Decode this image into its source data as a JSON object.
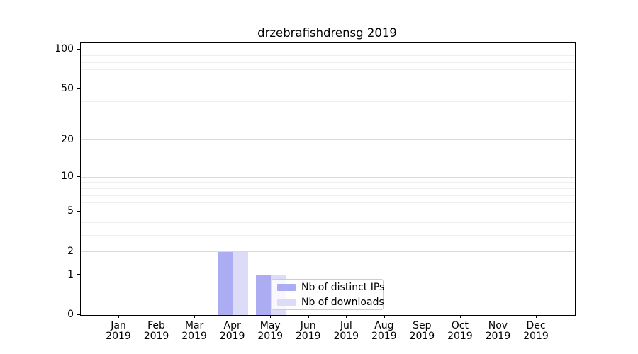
{
  "figure_title": "drzebrafishdrensg 2019",
  "chart_data": {
    "type": "bar",
    "title": "drzebrafishdrensg 2019",
    "xlabel": "",
    "ylabel": "",
    "categories": [
      "Jan 2019",
      "Feb 2019",
      "Mar 2019",
      "Apr 2019",
      "May 2019",
      "Jun 2019",
      "Jul 2019",
      "Aug 2019",
      "Sep 2019",
      "Oct 2019",
      "Nov 2019",
      "Dec 2019"
    ],
    "x_tick_line1": [
      "Jan",
      "Feb",
      "Mar",
      "Apr",
      "May",
      "Jun",
      "Jul",
      "Aug",
      "Sep",
      "Oct",
      "Nov",
      "Dec"
    ],
    "x_tick_line2": [
      "2019",
      "2019",
      "2019",
      "2019",
      "2019",
      "2019",
      "2019",
      "2019",
      "2019",
      "2019",
      "2019",
      "2019"
    ],
    "series": [
      {
        "name": "Nb of distinct IPs",
        "color": "#acacf2",
        "values": [
          0,
          0,
          0,
          2,
          1,
          0,
          0,
          0,
          0,
          0,
          0,
          0
        ]
      },
      {
        "name": "Nb of downloads",
        "color": "#dcdcf8",
        "values": [
          0,
          0,
          0,
          2,
          1,
          0,
          0,
          0,
          0,
          0,
          0,
          0
        ]
      }
    ],
    "yscale": "log1p",
    "ylim": [
      0,
      112
    ],
    "y_major_ticks": [
      0,
      1,
      2,
      5,
      10,
      20,
      50,
      100
    ],
    "y_minor_ticks": [
      3,
      4,
      6,
      7,
      8,
      9,
      30,
      40,
      60,
      70,
      80,
      90
    ],
    "grid": "horizontal",
    "legend": {
      "entries": [
        "Nb of distinct IPs",
        "Nb of downloads"
      ],
      "position": "lower center"
    }
  }
}
